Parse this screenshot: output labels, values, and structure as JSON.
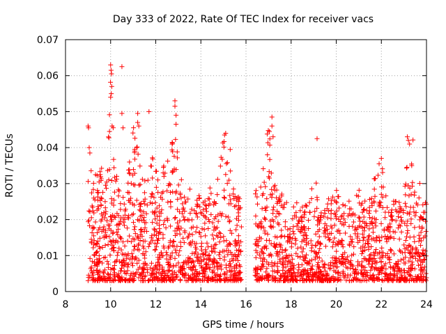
{
  "chart_data": {
    "type": "scatter",
    "title": "Day 333 of 2022, Rate Of TEC Index for receiver vacs",
    "xlabel": "GPS time / hours",
    "ylabel": "ROTI / TECUs",
    "xlim": [
      8,
      24
    ],
    "ylim": [
      0,
      0.07
    ],
    "xticks": [
      "8",
      "10",
      "12",
      "14",
      "16",
      "18",
      "20",
      "22",
      "24"
    ],
    "yticks": [
      "0",
      "0.01",
      "0.02",
      "0.03",
      "0.04",
      "0.05",
      "0.06",
      "0.07"
    ],
    "grid": true,
    "marker": "+",
    "color": "#ff0000",
    "envelope": {
      "hours": [
        9.0,
        9.2,
        9.4,
        9.6,
        9.8,
        10.0,
        10.2,
        10.4,
        10.6,
        10.8,
        11.0,
        11.2,
        11.4,
        11.6,
        11.8,
        12.0,
        12.2,
        12.4,
        12.6,
        12.8,
        13.0,
        13.2,
        13.4,
        13.6,
        13.8,
        14.0,
        14.2,
        14.4,
        14.6,
        14.8,
        15.0,
        15.2,
        15.4,
        15.6,
        15.8,
        16.4,
        16.6,
        16.8,
        17.0,
        17.2,
        17.4,
        17.6,
        17.8,
        18.0,
        18.2,
        18.4,
        18.6,
        18.8,
        19.0,
        19.2,
        19.4,
        19.6,
        19.8,
        20.0,
        20.2,
        20.4,
        20.6,
        20.8,
        21.0,
        21.2,
        21.4,
        21.6,
        21.8,
        22.0,
        22.2,
        22.4,
        22.6,
        22.8,
        23.0,
        23.2,
        23.4,
        23.6,
        23.8,
        24.0
      ],
      "max_roti": [
        0.046,
        0.032,
        0.033,
        0.035,
        0.029,
        0.062,
        0.036,
        0.034,
        0.028,
        0.034,
        0.047,
        0.04,
        0.032,
        0.03,
        0.042,
        0.035,
        0.03,
        0.04,
        0.035,
        0.053,
        0.036,
        0.03,
        0.032,
        0.028,
        0.025,
        0.028,
        0.026,
        0.03,
        0.025,
        0.034,
        0.044,
        0.038,
        0.032,
        0.027,
        0.026,
        0.03,
        0.028,
        0.038,
        0.048,
        0.03,
        0.032,
        0.027,
        0.025,
        0.024,
        0.028,
        0.024,
        0.024,
        0.025,
        0.042,
        0.022,
        0.024,
        0.027,
        0.026,
        0.03,
        0.024,
        0.025,
        0.026,
        0.024,
        0.03,
        0.025,
        0.028,
        0.03,
        0.034,
        0.037,
        0.028,
        0.024,
        0.026,
        0.025,
        0.033,
        0.038,
        0.043,
        0.035,
        0.028,
        0.027
      ],
      "min_roti": 0.003
    },
    "outliers": [
      {
        "x": 9.0,
        "y": 0.046
      },
      {
        "x": 9.02,
        "y": 0.0455
      },
      {
        "x": 9.05,
        "y": 0.04
      },
      {
        "x": 10.0,
        "y": 0.063
      },
      {
        "x": 10.02,
        "y": 0.0615
      },
      {
        "x": 10.04,
        "y": 0.0605
      },
      {
        "x": 10.05,
        "y": 0.057
      },
      {
        "x": 10.03,
        "y": 0.055
      },
      {
        "x": 10.0,
        "y": 0.054
      },
      {
        "x": 9.95,
        "y": 0.0445
      },
      {
        "x": 10.5,
        "y": 0.0625
      },
      {
        "x": 10.5,
        "y": 0.0495
      },
      {
        "x": 10.55,
        "y": 0.0455
      },
      {
        "x": 11.2,
        "y": 0.0495
      },
      {
        "x": 11.7,
        "y": 0.05
      },
      {
        "x": 11.2,
        "y": 0.047
      },
      {
        "x": 11.25,
        "y": 0.046
      },
      {
        "x": 12.85,
        "y": 0.053
      },
      {
        "x": 12.85,
        "y": 0.0515
      },
      {
        "x": 12.9,
        "y": 0.049
      },
      {
        "x": 12.9,
        "y": 0.0465
      },
      {
        "x": 15.1,
        "y": 0.044
      },
      {
        "x": 15.05,
        "y": 0.0435
      },
      {
        "x": 15.3,
        "y": 0.0395
      },
      {
        "x": 17.15,
        "y": 0.0485
      },
      {
        "x": 17.15,
        "y": 0.046
      },
      {
        "x": 17.2,
        "y": 0.043
      },
      {
        "x": 16.95,
        "y": 0.038
      },
      {
        "x": 19.15,
        "y": 0.0425
      },
      {
        "x": 23.15,
        "y": 0.043
      },
      {
        "x": 23.2,
        "y": 0.042
      },
      {
        "x": 23.25,
        "y": 0.041
      },
      {
        "x": 22.0,
        "y": 0.037
      },
      {
        "x": 21.9,
        "y": 0.0355
      }
    ]
  }
}
